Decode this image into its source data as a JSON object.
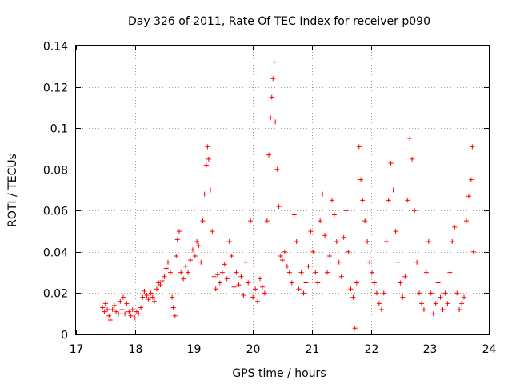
{
  "chart_data": {
    "type": "scatter",
    "title": "Day 326 of 2011, Rate Of TEC Index for receiver p090",
    "xlabel": "GPS time / hours",
    "ylabel": "ROTI / TECUs",
    "xlim": [
      17,
      24
    ],
    "ylim": [
      0,
      0.14
    ],
    "x_ticks": [
      "17",
      "18",
      "19",
      "20",
      "21",
      "22",
      "23",
      "24"
    ],
    "y_ticks": [
      "0",
      "0.02",
      "0.04",
      "0.06",
      "0.08",
      "0.1",
      "0.12",
      "0.14"
    ],
    "grid": true,
    "marker": "+",
    "color": "#ff0000",
    "series": [
      {
        "name": "p090",
        "points": [
          [
            17.45,
            0.013
          ],
          [
            17.48,
            0.011
          ],
          [
            17.5,
            0.015
          ],
          [
            17.53,
            0.012
          ],
          [
            17.56,
            0.009
          ],
          [
            17.58,
            0.007
          ],
          [
            17.62,
            0.012
          ],
          [
            17.65,
            0.014
          ],
          [
            17.68,
            0.011
          ],
          [
            17.72,
            0.01
          ],
          [
            17.75,
            0.016
          ],
          [
            17.78,
            0.012
          ],
          [
            17.8,
            0.018
          ],
          [
            17.83,
            0.01
          ],
          [
            17.86,
            0.015
          ],
          [
            17.9,
            0.011
          ],
          [
            17.93,
            0.009
          ],
          [
            17.96,
            0.012
          ],
          [
            18.0,
            0.008
          ],
          [
            18.03,
            0.011
          ],
          [
            18.06,
            0.01
          ],
          [
            18.1,
            0.013
          ],
          [
            18.13,
            0.018
          ],
          [
            18.16,
            0.021
          ],
          [
            18.2,
            0.019
          ],
          [
            18.23,
            0.017
          ],
          [
            18.27,
            0.02
          ],
          [
            18.3,
            0.018
          ],
          [
            18.33,
            0.016
          ],
          [
            18.37,
            0.022
          ],
          [
            18.4,
            0.025
          ],
          [
            18.43,
            0.024
          ],
          [
            18.46,
            0.026
          ],
          [
            18.5,
            0.028
          ],
          [
            18.53,
            0.032
          ],
          [
            18.56,
            0.035
          ],
          [
            18.6,
            0.03
          ],
          [
            18.63,
            0.018
          ],
          [
            18.65,
            0.013
          ],
          [
            18.68,
            0.009
          ],
          [
            18.7,
            0.038
          ],
          [
            18.72,
            0.046
          ],
          [
            18.75,
            0.05
          ],
          [
            18.78,
            0.03
          ],
          [
            18.82,
            0.027
          ],
          [
            18.86,
            0.033
          ],
          [
            18.9,
            0.03
          ],
          [
            18.94,
            0.036
          ],
          [
            18.98,
            0.041
          ],
          [
            19.02,
            0.038
          ],
          [
            19.05,
            0.045
          ],
          [
            19.08,
            0.043
          ],
          [
            19.12,
            0.035
          ],
          [
            19.15,
            0.055
          ],
          [
            19.18,
            0.068
          ],
          [
            19.21,
            0.082
          ],
          [
            19.23,
            0.091
          ],
          [
            19.25,
            0.085
          ],
          [
            19.28,
            0.07
          ],
          [
            19.31,
            0.05
          ],
          [
            19.34,
            0.028
          ],
          [
            19.37,
            0.022
          ],
          [
            19.4,
            0.029
          ],
          [
            19.44,
            0.025
          ],
          [
            19.48,
            0.03
          ],
          [
            19.52,
            0.034
          ],
          [
            19.56,
            0.027
          ],
          [
            19.6,
            0.045
          ],
          [
            19.64,
            0.038
          ],
          [
            19.68,
            0.023
          ],
          [
            19.72,
            0.03
          ],
          [
            19.76,
            0.024
          ],
          [
            19.8,
            0.028
          ],
          [
            19.84,
            0.019
          ],
          [
            19.88,
            0.035
          ],
          [
            19.92,
            0.025
          ],
          [
            19.96,
            0.055
          ],
          [
            20.0,
            0.018
          ],
          [
            20.04,
            0.022
          ],
          [
            20.08,
            0.016
          ],
          [
            20.12,
            0.027
          ],
          [
            20.16,
            0.023
          ],
          [
            20.2,
            0.02
          ],
          [
            20.24,
            0.055
          ],
          [
            20.27,
            0.087
          ],
          [
            20.3,
            0.105
          ],
          [
            20.32,
            0.115
          ],
          [
            20.34,
            0.124
          ],
          [
            20.36,
            0.132
          ],
          [
            20.38,
            0.103
          ],
          [
            20.41,
            0.08
          ],
          [
            20.44,
            0.062
          ],
          [
            20.47,
            0.038
          ],
          [
            20.5,
            0.036
          ],
          [
            20.54,
            0.04
          ],
          [
            20.58,
            0.033
          ],
          [
            20.62,
            0.03
          ],
          [
            20.66,
            0.025
          ],
          [
            20.7,
            0.058
          ],
          [
            20.74,
            0.045
          ],
          [
            20.78,
            0.022
          ],
          [
            20.82,
            0.03
          ],
          [
            20.86,
            0.02
          ],
          [
            20.9,
            0.025
          ],
          [
            20.94,
            0.033
          ],
          [
            20.98,
            0.05
          ],
          [
            21.02,
            0.04
          ],
          [
            21.06,
            0.03
          ],
          [
            21.1,
            0.025
          ],
          [
            21.14,
            0.055
          ],
          [
            21.18,
            0.068
          ],
          [
            21.22,
            0.048
          ],
          [
            21.26,
            0.03
          ],
          [
            21.3,
            0.038
          ],
          [
            21.34,
            0.065
          ],
          [
            21.38,
            0.058
          ],
          [
            21.42,
            0.045
          ],
          [
            21.46,
            0.035
          ],
          [
            21.5,
            0.028
          ],
          [
            21.54,
            0.047
          ],
          [
            21.58,
            0.06
          ],
          [
            21.62,
            0.04
          ],
          [
            21.66,
            0.022
          ],
          [
            21.7,
            0.018
          ],
          [
            21.73,
            0.003
          ],
          [
            21.76,
            0.025
          ],
          [
            21.8,
            0.091
          ],
          [
            21.83,
            0.075
          ],
          [
            21.86,
            0.065
          ],
          [
            21.9,
            0.055
          ],
          [
            21.94,
            0.045
          ],
          [
            21.98,
            0.035
          ],
          [
            22.02,
            0.03
          ],
          [
            22.06,
            0.025
          ],
          [
            22.1,
            0.02
          ],
          [
            22.14,
            0.015
          ],
          [
            22.18,
            0.012
          ],
          [
            22.22,
            0.02
          ],
          [
            22.26,
            0.045
          ],
          [
            22.3,
            0.065
          ],
          [
            22.34,
            0.083
          ],
          [
            22.38,
            0.07
          ],
          [
            22.42,
            0.05
          ],
          [
            22.46,
            0.035
          ],
          [
            22.5,
            0.025
          ],
          [
            22.54,
            0.018
          ],
          [
            22.58,
            0.028
          ],
          [
            22.62,
            0.065
          ],
          [
            22.66,
            0.095
          ],
          [
            22.7,
            0.085
          ],
          [
            22.74,
            0.06
          ],
          [
            22.78,
            0.035
          ],
          [
            22.82,
            0.02
          ],
          [
            22.86,
            0.015
          ],
          [
            22.9,
            0.012
          ],
          [
            22.94,
            0.03
          ],
          [
            22.98,
            0.045
          ],
          [
            23.02,
            0.02
          ],
          [
            23.06,
            0.01
          ],
          [
            23.1,
            0.015
          ],
          [
            23.14,
            0.025
          ],
          [
            23.18,
            0.018
          ],
          [
            23.22,
            0.012
          ],
          [
            23.26,
            0.02
          ],
          [
            23.3,
            0.015
          ],
          [
            23.34,
            0.03
          ],
          [
            23.38,
            0.045
          ],
          [
            23.42,
            0.052
          ],
          [
            23.46,
            0.02
          ],
          [
            23.5,
            0.012
          ],
          [
            23.54,
            0.015
          ],
          [
            23.58,
            0.018
          ],
          [
            23.62,
            0.055
          ],
          [
            23.66,
            0.067
          ],
          [
            23.7,
            0.075
          ],
          [
            23.72,
            0.091
          ],
          [
            23.74,
            0.04
          ]
        ]
      }
    ]
  }
}
